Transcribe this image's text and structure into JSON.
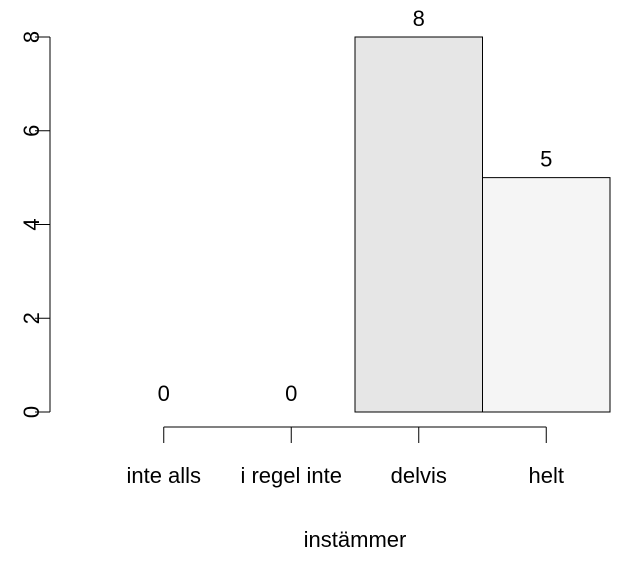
{
  "chart_data": {
    "type": "bar",
    "x_label": "instämmer",
    "categories": [
      "inte alls",
      "i regel inte",
      "delvis",
      "helt"
    ],
    "values": [
      0,
      0,
      8,
      5
    ],
    "colors": [
      "#e6e6e6",
      "#e6e6e6",
      "#e6e6e6",
      "#f5f5f5"
    ],
    "ylim": [
      0,
      8
    ],
    "yticks": [
      0,
      2,
      4,
      6,
      8
    ]
  }
}
